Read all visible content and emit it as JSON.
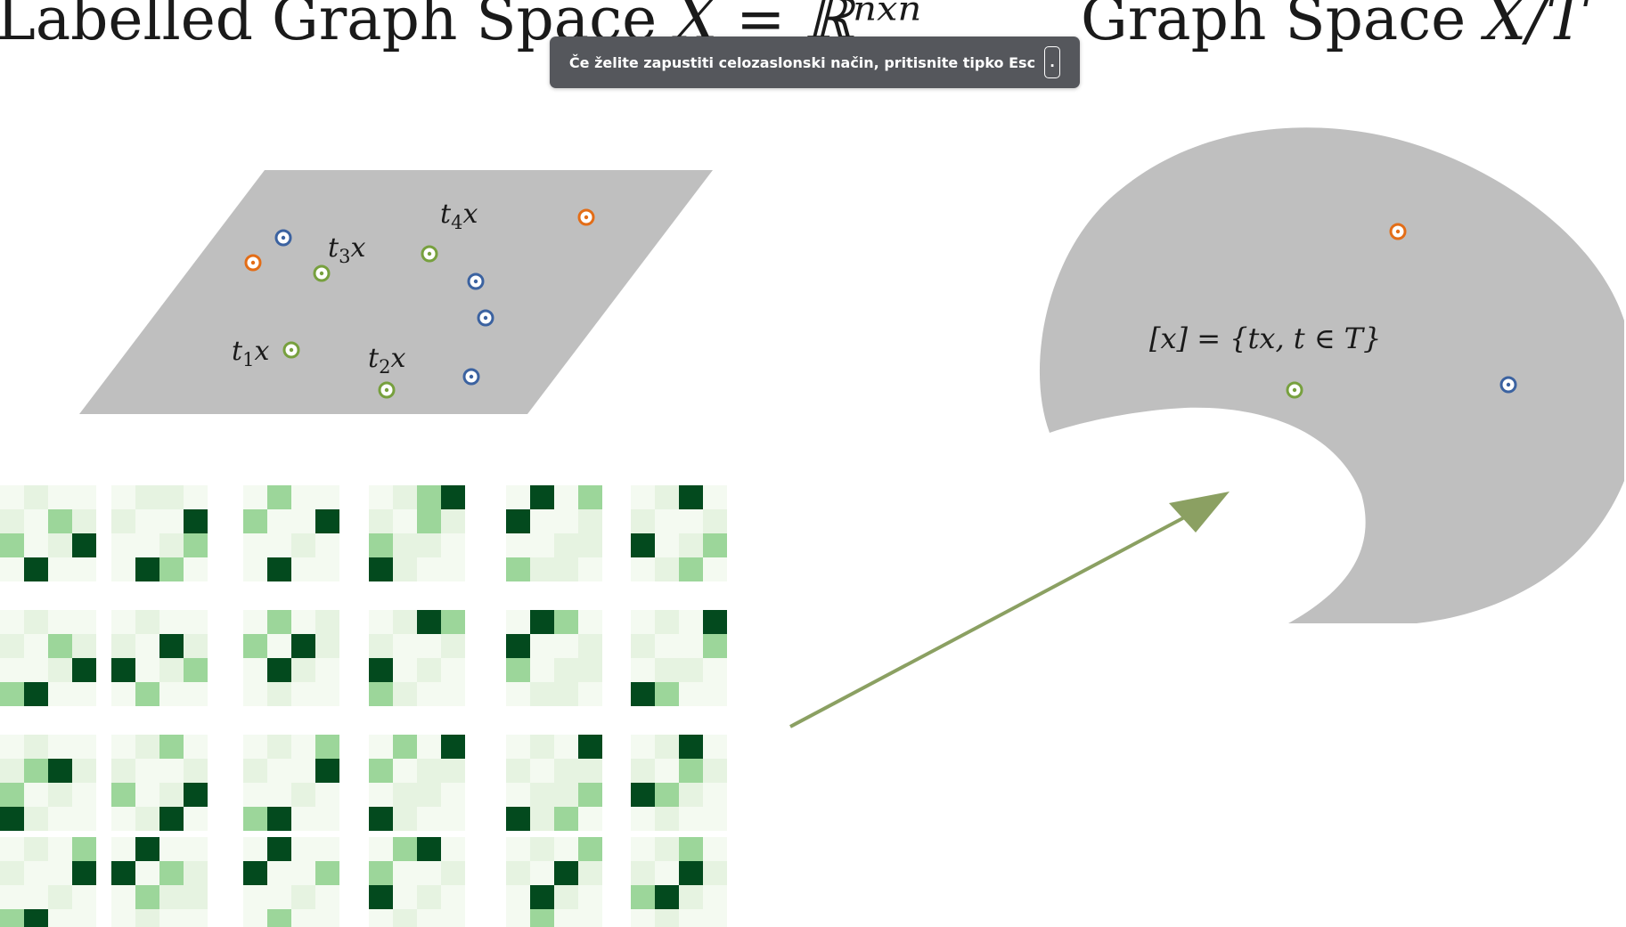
{
  "titles": {
    "left_text": "Labelled Graph Space ",
    "left_math": "X = ℝⁿˣⁿ",
    "right_text": "Graph Space ",
    "right_math": "X/T"
  },
  "labelled_space": {
    "labels": [
      {
        "t": "t",
        "sub": "1",
        "v": "x"
      },
      {
        "t": "t",
        "sub": "2",
        "v": "x"
      },
      {
        "t": "t",
        "sub": "3",
        "v": "x"
      },
      {
        "t": "t",
        "sub": "4",
        "v": "x"
      }
    ]
  },
  "graph_space": {
    "equivalence_class": "[x] = {tx, t ∈ T}"
  },
  "colors": {
    "region": "#bfbfbf",
    "arrow": "#8ba062",
    "point_orange": "#e36d17",
    "point_blue": "#3b62a0",
    "point_green": "#77a03e",
    "heatmap_scale": [
      "#f4faf1",
      "#e6f3e1",
      "#9cd69a",
      "#034a1e"
    ]
  },
  "adjacency_matrices": [
    [
      [
        0,
        1,
        0,
        0
      ],
      [
        1,
        0,
        2,
        0
      ],
      [
        2,
        0,
        0,
        3
      ],
      [
        0,
        3,
        0,
        0
      ]
    ],
    [
      [
        0,
        0,
        1,
        0
      ],
      [
        0,
        0,
        0,
        3
      ],
      [
        0,
        0,
        0,
        2
      ],
      [
        0,
        3,
        2,
        0
      ]
    ],
    [
      [
        0,
        2,
        0,
        0
      ],
      [
        2,
        0,
        0,
        3
      ],
      [
        0,
        0,
        0,
        0
      ],
      [
        0,
        3,
        0,
        0
      ]
    ],
    [
      [
        0,
        0,
        2,
        3
      ],
      [
        0,
        0,
        2,
        0
      ],
      [
        2,
        1,
        0,
        0
      ],
      [
        3,
        0,
        0,
        0
      ]
    ],
    [
      [
        0,
        3,
        0,
        2
      ],
      [
        3,
        0,
        0,
        0
      ],
      [
        0,
        0,
        0,
        1
      ],
      [
        2,
        0,
        1,
        0
      ]
    ],
    [
      [
        0,
        0,
        3,
        0
      ],
      [
        0,
        0,
        0,
        1
      ],
      [
        3,
        0,
        0,
        2
      ],
      [
        0,
        1,
        2,
        0
      ]
    ],
    [
      [
        0,
        1,
        0,
        0
      ],
      [
        0,
        0,
        2,
        0
      ],
      [
        0,
        0,
        0,
        3
      ],
      [
        2,
        3,
        0,
        0
      ]
    ],
    [
      [
        0,
        0,
        0,
        0
      ],
      [
        0,
        0,
        3,
        0
      ],
      [
        3,
        0,
        0,
        2
      ],
      [
        0,
        2,
        0,
        0
      ]
    ],
    [
      [
        0,
        2,
        0,
        1
      ],
      [
        2,
        0,
        3,
        0
      ],
      [
        0,
        3,
        0,
        0
      ],
      [
        0,
        0,
        0,
        0
      ]
    ],
    [
      [
        0,
        0,
        3,
        2
      ],
      [
        0,
        0,
        0,
        1
      ],
      [
        3,
        0,
        0,
        0
      ],
      [
        2,
        0,
        0,
        0
      ]
    ],
    [
      [
        0,
        3,
        2,
        0
      ],
      [
        3,
        0,
        0,
        0
      ],
      [
        2,
        0,
        0,
        1
      ],
      [
        0,
        0,
        1,
        0
      ]
    ],
    [
      [
        0,
        0,
        0,
        3
      ],
      [
        0,
        0,
        0,
        2
      ],
      [
        0,
        1,
        0,
        0
      ],
      [
        3,
        2,
        0,
        0
      ]
    ],
    [
      [
        0,
        1,
        0,
        0
      ],
      [
        0,
        2,
        3,
        0
      ],
      [
        2,
        0,
        0,
        0
      ],
      [
        3,
        0,
        0,
        0
      ]
    ],
    [
      [
        0,
        0,
        2,
        0
      ],
      [
        0,
        0,
        0,
        0
      ],
      [
        2,
        0,
        0,
        3
      ],
      [
        0,
        0,
        3,
        0
      ]
    ],
    [
      [
        0,
        0,
        0,
        2
      ],
      [
        0,
        0,
        0,
        3
      ],
      [
        0,
        0,
        0,
        0
      ],
      [
        2,
        3,
        0,
        0
      ]
    ],
    [
      [
        0,
        2,
        0,
        3
      ],
      [
        2,
        0,
        1,
        0
      ],
      [
        0,
        1,
        0,
        0
      ],
      [
        3,
        0,
        0,
        0
      ]
    ],
    [
      [
        0,
        0,
        0,
        3
      ],
      [
        0,
        0,
        1,
        0
      ],
      [
        0,
        1,
        0,
        2
      ],
      [
        3,
        0,
        2,
        0
      ]
    ],
    [
      [
        0,
        0,
        3,
        0
      ],
      [
        0,
        0,
        2,
        1
      ],
      [
        3,
        2,
        0,
        0
      ],
      [
        0,
        0,
        0,
        0
      ]
    ],
    [
      [
        0,
        1,
        0,
        2
      ],
      [
        0,
        0,
        0,
        3
      ],
      [
        0,
        0,
        0,
        0
      ],
      [
        2,
        3,
        0,
        0
      ]
    ],
    [
      [
        0,
        3,
        0,
        0
      ],
      [
        3,
        0,
        2,
        0
      ],
      [
        0,
        2,
        0,
        1
      ],
      [
        0,
        0,
        0,
        0
      ]
    ],
    [
      [
        0,
        3,
        0,
        0
      ],
      [
        3,
        0,
        0,
        2
      ],
      [
        0,
        0,
        0,
        0
      ],
      [
        0,
        2,
        0,
        0
      ]
    ],
    [
      [
        0,
        2,
        3,
        0
      ],
      [
        2,
        0,
        0,
        1
      ],
      [
        3,
        0,
        0,
        0
      ],
      [
        0,
        0,
        0,
        0
      ]
    ],
    [
      [
        0,
        0,
        0,
        2
      ],
      [
        0,
        0,
        3,
        0
      ],
      [
        0,
        3,
        0,
        0
      ],
      [
        0,
        2,
        0,
        0
      ]
    ],
    [
      [
        0,
        0,
        2,
        0
      ],
      [
        0,
        0,
        3,
        0
      ],
      [
        2,
        3,
        0,
        0
      ],
      [
        0,
        0,
        0,
        0
      ]
    ]
  ],
  "fullscreen_toast": {
    "message": "Če želite zapustiti celozaslonski način, pritisnite tipko Esc",
    "key": "."
  }
}
